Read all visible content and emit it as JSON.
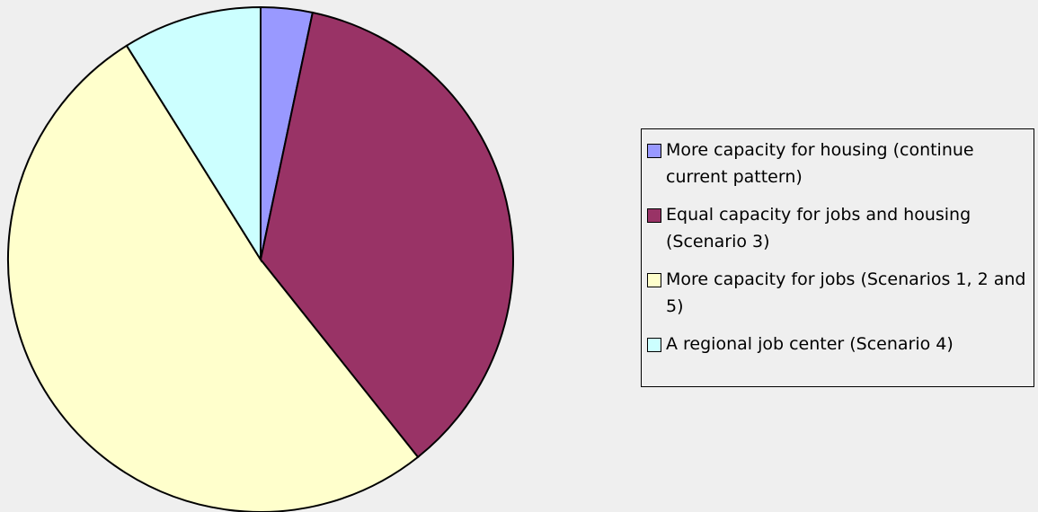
{
  "chart_data": {
    "type": "pie",
    "categories": [
      "More capacity for housing (continue current pattern)",
      "Equal capacity for jobs and housing (Scenario 3)",
      "More capacity for jobs (Scenarios 1, 2 and 5)",
      "A regional job center (Scenario 4)"
    ],
    "values": [
      3.3,
      36,
      51.8,
      8.9
    ],
    "colors": [
      "#9999ff",
      "#993366",
      "#ffffcc",
      "#ccffff"
    ],
    "legend": "right"
  }
}
